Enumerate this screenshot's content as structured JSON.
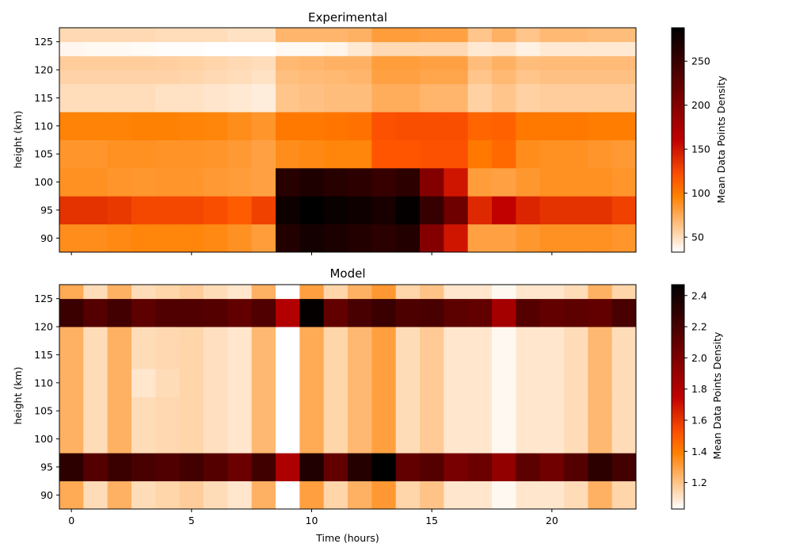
{
  "chart_data": [
    {
      "type": "heatmap",
      "title": "Experimental",
      "xlabel": "",
      "ylabel": "height ($km$)",
      "ylabel_display": "height (km)",
      "x": [
        0,
        1,
        2,
        3,
        4,
        5,
        6,
        7,
        8,
        9,
        10,
        11,
        12,
        13,
        14,
        15,
        16,
        17,
        18,
        19,
        20,
        21,
        22,
        23
      ],
      "y": [
        90,
        95,
        100,
        105,
        110,
        115,
        120,
        125
      ],
      "xlim": [
        -0.5,
        23.5
      ],
      "ylim": [
        87.5,
        127.5
      ],
      "xticks": [
        "0",
        "5",
        "10",
        "15",
        "20"
      ],
      "yticks": [
        "90",
        "95",
        "100",
        "105",
        "110",
        "115",
        "120",
        "125"
      ],
      "colormap": "gist_heat_r",
      "colorbar": {
        "label": "Mean Data Points Density",
        "range": [
          33,
          288
        ],
        "ticks": [
          "50",
          "100",
          "150",
          "200",
          "250"
        ]
      },
      "values": [
        [
          90,
          90,
          92,
          94,
          94,
          94,
          92,
          88,
          82,
          265,
          275,
          270,
          265,
          260,
          265,
          200,
          150,
          80,
          80,
          85,
          88,
          88,
          88,
          86
        ],
        [
          135,
          135,
          132,
          125,
          125,
          125,
          122,
          115,
          128,
          278,
          288,
          282,
          278,
          272,
          285,
          252,
          215,
          140,
          160,
          142,
          135,
          135,
          135,
          128
        ],
        [
          88,
          88,
          86,
          85,
          86,
          86,
          84,
          82,
          80,
          262,
          268,
          262,
          258,
          252,
          258,
          200,
          150,
          82,
          80,
          85,
          88,
          88,
          88,
          86
        ],
        [
          86,
          86,
          88,
          88,
          87,
          87,
          86,
          84,
          80,
          90,
          92,
          94,
          94,
          118,
          118,
          120,
          120,
          100,
          108,
          90,
          88,
          88,
          86,
          84
        ],
        [
          95,
          95,
          95,
          96,
          96,
          95,
          94,
          90,
          86,
          100,
          100,
          102,
          104,
          120,
          122,
          122,
          122,
          110,
          112,
          100,
          100,
          100,
          98,
          98
        ],
        [
          50,
          50,
          50,
          50,
          48,
          48,
          46,
          44,
          42,
          62,
          64,
          66,
          66,
          74,
          74,
          70,
          70,
          56,
          62,
          56,
          58,
          58,
          58,
          58
        ],
        [
          55,
          55,
          55,
          55,
          55,
          54,
          52,
          50,
          48,
          65,
          67,
          68,
          70,
          80,
          80,
          78,
          78,
          62,
          68,
          62,
          64,
          64,
          64,
          64
        ],
        [
          58,
          58,
          58,
          58,
          57,
          56,
          54,
          52,
          50,
          68,
          70,
          72,
          72,
          82,
          82,
          80,
          80,
          66,
          72,
          66,
          67,
          67,
          67,
          67
        ],
        [
          37,
          36,
          36,
          35,
          34,
          34,
          33,
          33,
          33,
          36,
          36,
          38,
          44,
          52,
          52,
          52,
          52,
          44,
          46,
          40,
          44,
          44,
          44,
          44
        ],
        [
          52,
          52,
          52,
          52,
          50,
          50,
          50,
          48,
          48,
          70,
          70,
          70,
          72,
          82,
          82,
          80,
          80,
          62,
          72,
          62,
          68,
          68,
          66,
          66
        ]
      ],
      "y_rows": [
        90,
        95,
        100,
        105,
        110,
        115,
        117.5,
        120,
        122.5,
        125
      ],
      "y_edges": [
        87.5,
        92.5,
        97.5,
        102.5,
        107.5,
        112.5,
        117.5,
        120,
        122.5,
        125,
        127.5
      ]
    },
    {
      "type": "heatmap",
      "title": "Model",
      "xlabel": "Time (hours)",
      "ylabel": "height ($km$)",
      "ylabel_display": "height (km)",
      "x": [
        0,
        1,
        2,
        3,
        4,
        5,
        6,
        7,
        8,
        9,
        10,
        11,
        12,
        13,
        14,
        15,
        16,
        17,
        18,
        19,
        20,
        21,
        22,
        23
      ],
      "y": [
        90,
        95,
        100,
        105,
        110,
        115,
        120,
        125
      ],
      "xlim": [
        -0.5,
        23.5
      ],
      "ylim": [
        87.5,
        127.5
      ],
      "xticks": [
        "0",
        "5",
        "10",
        "15",
        "20"
      ],
      "yticks": [
        "90",
        "95",
        "100",
        "105",
        "110",
        "115",
        "120",
        "125"
      ],
      "colormap": "gist_heat_r",
      "colorbar": {
        "label": "Mean Data Points Density",
        "range": [
          1.03,
          2.47
        ],
        "ticks": [
          "1.2",
          "1.4",
          "1.6",
          "1.8",
          "2.0",
          "2.2",
          "2.4"
        ]
      },
      "values": [
        [
          1.27,
          1.13,
          1.25,
          1.13,
          1.15,
          1.17,
          1.13,
          1.1,
          1.25,
          1.03,
          1.3,
          1.15,
          1.25,
          1.32,
          1.15,
          1.2,
          1.1,
          1.1,
          1.05,
          1.1,
          1.1,
          1.13,
          1.25,
          1.15
        ],
        [
          2.3,
          2.15,
          2.25,
          2.2,
          2.17,
          2.22,
          2.15,
          2.07,
          2.23,
          1.82,
          2.35,
          2.1,
          2.33,
          2.47,
          2.1,
          2.15,
          2.02,
          2.07,
          1.92,
          2.12,
          2.05,
          2.15,
          2.3,
          2.22
        ],
        [
          1.25,
          1.13,
          1.25,
          1.13,
          1.14,
          1.15,
          1.12,
          1.1,
          1.23,
          1.03,
          1.27,
          1.15,
          1.23,
          1.3,
          1.13,
          1.18,
          1.1,
          1.1,
          1.05,
          1.1,
          1.1,
          1.13,
          1.23,
          1.13
        ],
        [
          1.25,
          1.13,
          1.25,
          1.13,
          1.14,
          1.15,
          1.12,
          1.1,
          1.23,
          1.03,
          1.27,
          1.15,
          1.23,
          1.3,
          1.13,
          1.18,
          1.1,
          1.1,
          1.05,
          1.1,
          1.1,
          1.13,
          1.23,
          1.13
        ],
        [
          1.25,
          1.13,
          1.25,
          1.1,
          1.13,
          1.15,
          1.12,
          1.1,
          1.23,
          1.03,
          1.27,
          1.15,
          1.23,
          1.3,
          1.13,
          1.18,
          1.1,
          1.1,
          1.05,
          1.1,
          1.1,
          1.13,
          1.23,
          1.13
        ],
        [
          1.25,
          1.13,
          1.25,
          1.13,
          1.14,
          1.15,
          1.12,
          1.1,
          1.23,
          1.03,
          1.27,
          1.15,
          1.23,
          1.3,
          1.13,
          1.18,
          1.1,
          1.1,
          1.05,
          1.1,
          1.1,
          1.13,
          1.23,
          1.13
        ],
        [
          1.25,
          1.13,
          1.25,
          1.13,
          1.14,
          1.15,
          1.12,
          1.1,
          1.23,
          1.03,
          1.27,
          1.15,
          1.23,
          1.3,
          1.13,
          1.18,
          1.1,
          1.1,
          1.05,
          1.1,
          1.1,
          1.13,
          1.23,
          1.13
        ],
        [
          2.25,
          2.15,
          2.22,
          2.12,
          2.17,
          2.17,
          2.15,
          2.1,
          2.17,
          1.8,
          2.45,
          2.1,
          2.2,
          2.25,
          2.18,
          2.2,
          2.12,
          2.1,
          1.85,
          2.15,
          2.1,
          2.12,
          2.1,
          2.2
        ],
        [
          1.27,
          1.13,
          1.25,
          1.13,
          1.15,
          1.17,
          1.13,
          1.1,
          1.25,
          1.03,
          1.3,
          1.15,
          1.25,
          1.32,
          1.15,
          1.2,
          1.1,
          1.1,
          1.05,
          1.1,
          1.1,
          1.13,
          1.25,
          1.15
        ]
      ],
      "y_rows": [
        90,
        95,
        100,
        105,
        110,
        115,
        120,
        122.5,
        125
      ],
      "y_edges": [
        87.5,
        92.5,
        97.5,
        102.5,
        107.5,
        112.5,
        117.5,
        120,
        125,
        127.5
      ]
    }
  ]
}
